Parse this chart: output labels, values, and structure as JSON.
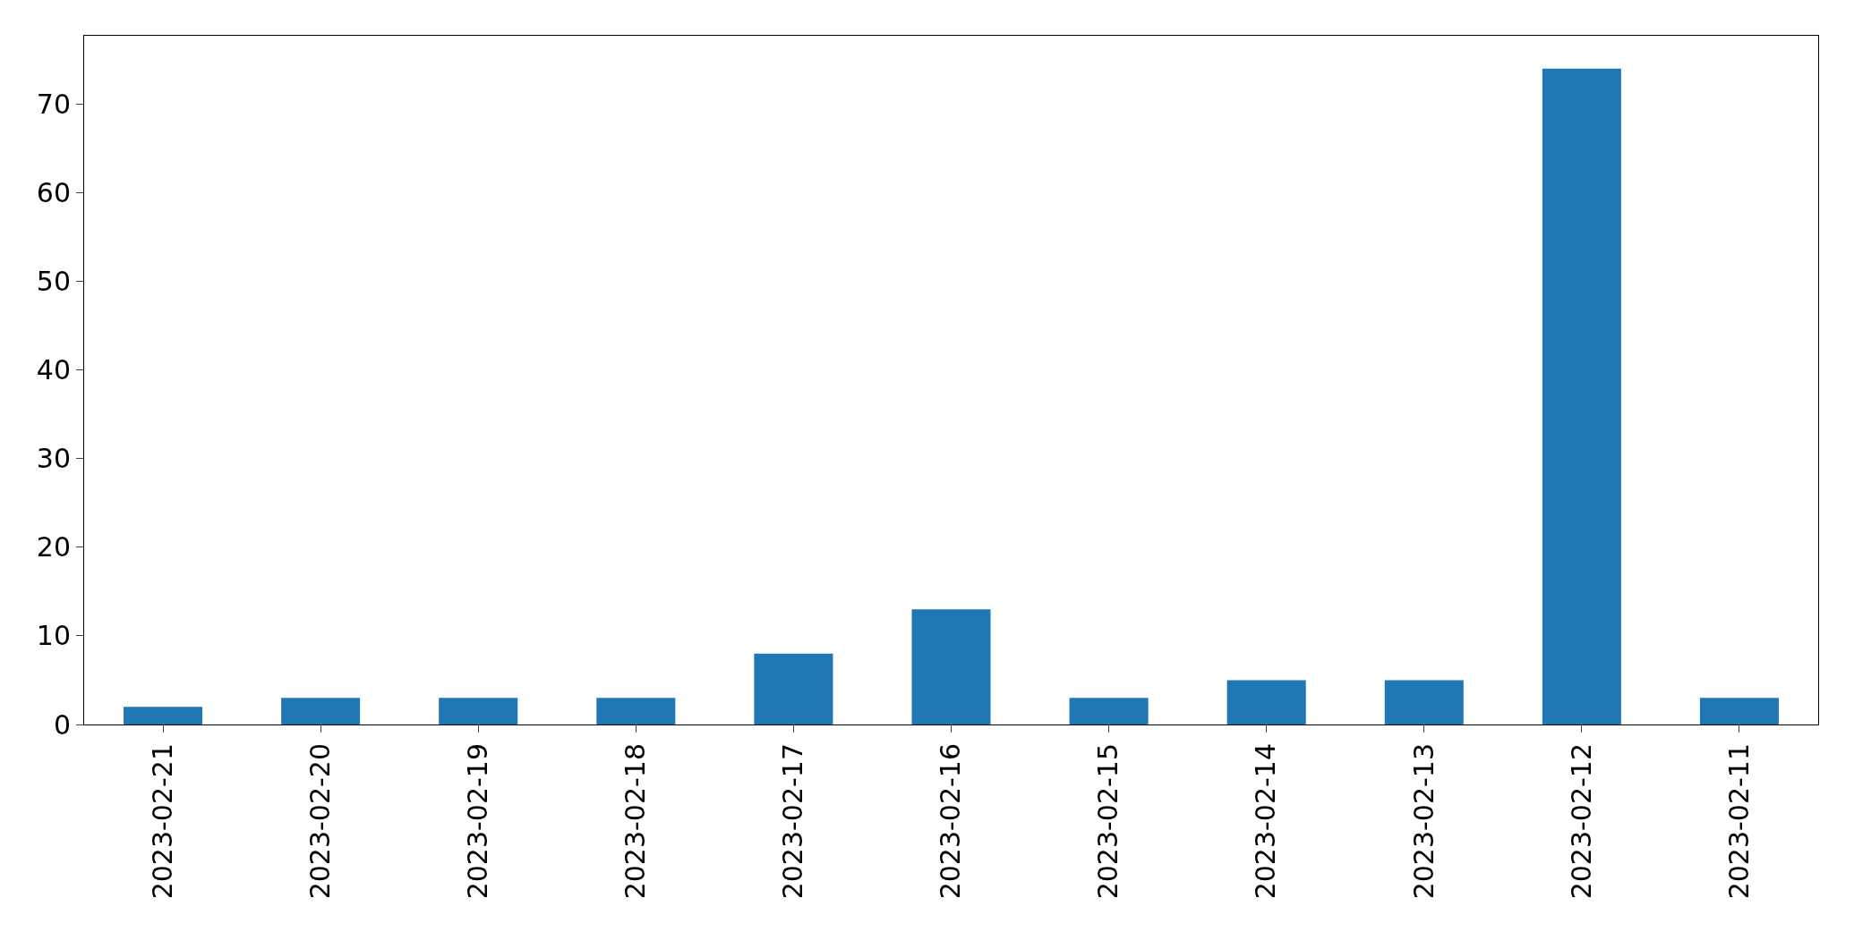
{
  "chart_data": {
    "type": "bar",
    "categories": [
      "2023-02-21",
      "2023-02-20",
      "2023-02-19",
      "2023-02-18",
      "2023-02-17",
      "2023-02-16",
      "2023-02-15",
      "2023-02-14",
      "2023-02-13",
      "2023-02-12",
      "2023-02-11"
    ],
    "values": [
      2,
      3,
      3,
      3,
      8,
      13,
      3,
      5,
      5,
      74,
      3
    ],
    "color": "#1f77b4",
    "ylim": [
      0,
      77.7
    ],
    "yticks": [
      0,
      10,
      20,
      30,
      40,
      50,
      60,
      70
    ],
    "grid": false,
    "legend": false
  }
}
